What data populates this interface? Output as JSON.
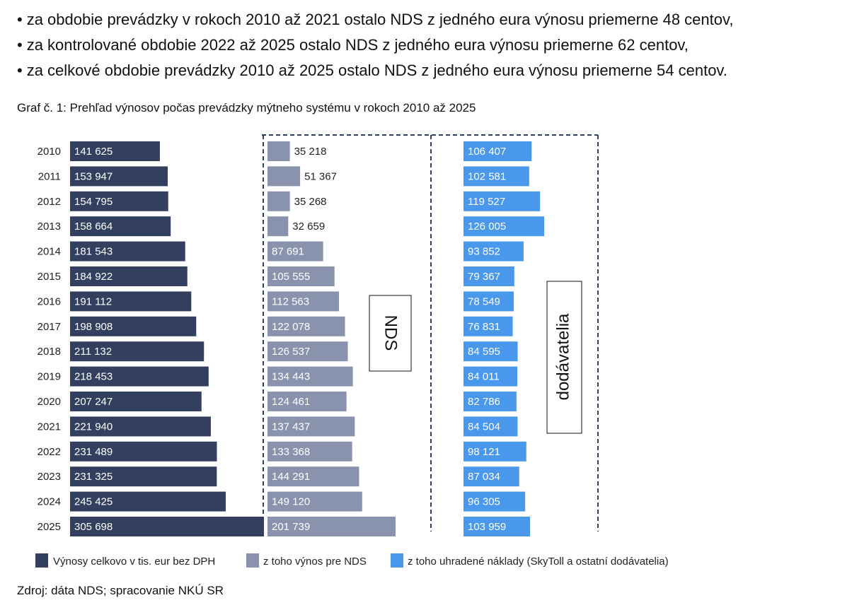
{
  "bullets": [
    "za obdobie prevádzky v rokoch 2010 až 2021 ostalo NDS z jedného eura výnosu priemerne 48 centov,",
    "za kontrolované obdobie 2022 až 2025 ostalo NDS z jedného eura výnosu priemerne 62 centov,",
    "za celkové obdobie prevádzky 2010 až 2025 ostalo NDS z jedného eura výnosu priemerne 54 centov."
  ],
  "caption": "Graf č. 1: Prehľad výnosov počas prevádzky mýtneho systému v rokoch 2010 až 2025",
  "source": "Zdroj: dáta NDS; spracovanie NKÚ SR",
  "chart_data": {
    "type": "bar",
    "orientation": "horizontal",
    "title": "Graf č. 1: Prehľad výnosov počas prevádzky mýtneho systému v rokoch 2010 až 2025",
    "categories": [
      "2010",
      "2011",
      "2012",
      "2013",
      "2014",
      "2015",
      "2016",
      "2017",
      "2018",
      "2019",
      "2020",
      "2021",
      "2022",
      "2023",
      "2024",
      "2025"
    ],
    "series": [
      {
        "name": "Výnosy celkovo v tis. eur bez DPH",
        "color": "#323f5e",
        "values": [
          141625,
          153947,
          154795,
          158664,
          181543,
          184922,
          191112,
          198908,
          211132,
          218453,
          207247,
          221940,
          231489,
          231325,
          245425,
          305698
        ],
        "labels": [
          "141 625",
          "153 947",
          "154 795",
          "158 664",
          "181 543",
          "184 922",
          "191 112",
          "198 908",
          "211 132",
          "218 453",
          "207 247",
          "221 940",
          "231 489",
          "231 325",
          "245 425",
          "305 698"
        ]
      },
      {
        "name": "z toho výnos pre NDS",
        "color": "#8993ae",
        "values": [
          35218,
          51367,
          35268,
          32659,
          87691,
          105555,
          112563,
          122078,
          126537,
          134443,
          124461,
          137437,
          133368,
          144291,
          149120,
          201739
        ],
        "labels": [
          "35 218",
          "51 367",
          "35 268",
          "32 659",
          "87 691",
          "105 555",
          "112 563",
          "122 078",
          "126 537",
          "134 443",
          "124 461",
          "137 437",
          "133 368",
          "144 291",
          "149 120",
          "201 739"
        ]
      },
      {
        "name": "z toho uhradené náklady (SkyToll a ostatní dodávatelia)",
        "color": "#4a98ec",
        "values": [
          106407,
          102581,
          119527,
          126005,
          93852,
          79367,
          78549,
          76831,
          84595,
          84011,
          82786,
          84504,
          98121,
          87034,
          96305,
          103959
        ],
        "labels": [
          "106 407",
          "102 581",
          "119 527",
          "126 005",
          "93 852",
          "79 367",
          "78 549",
          "76 831",
          "84 595",
          "84 011",
          "82 786",
          "84 504",
          "98 121",
          "87 034",
          "96 305",
          "103 959"
        ]
      }
    ],
    "annotations": [
      "NDS",
      "dodávatelia"
    ],
    "legend_position": "bottom"
  }
}
